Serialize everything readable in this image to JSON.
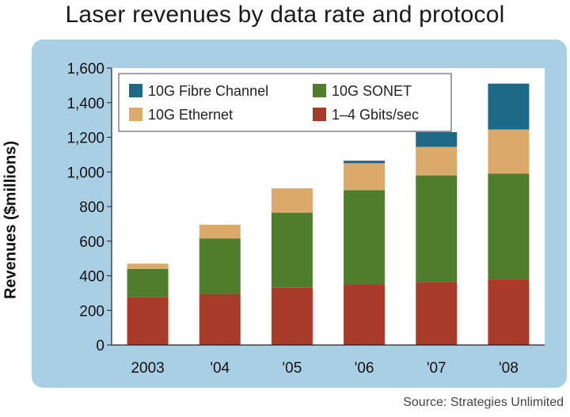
{
  "title": "Laser revenues by data rate and protocol",
  "source": "Source: Strategies Unlimited",
  "colors": {
    "panel_background": "#a9cfe4",
    "plot_background": "#ffffff"
  },
  "chart_data": {
    "type": "bar",
    "stacked": true,
    "title": "Laser revenues by data rate and protocol",
    "xlabel": "",
    "ylabel": "Revenues ($millions)",
    "ylim": [
      0,
      1600
    ],
    "yticks": [
      "0",
      "200",
      "400",
      "600",
      "800",
      "1,000",
      "1,200",
      "1,400",
      "1,600"
    ],
    "ytick_values": [
      0,
      200,
      400,
      600,
      800,
      1000,
      1200,
      1400,
      1600
    ],
    "categories": [
      "2003",
      "'04",
      "'05",
      "'06",
      "'07",
      "'08"
    ],
    "legend_position": "top-left",
    "series": [
      {
        "name": "1–4 Gbits/sec",
        "color": "#a83a28",
        "values": [
          275,
          295,
          330,
          350,
          365,
          375
        ]
      },
      {
        "name": "10G SONET",
        "color": "#4f7d2b",
        "values": [
          165,
          320,
          435,
          545,
          615,
          615
        ]
      },
      {
        "name": "10G Ethernet",
        "color": "#dba96a",
        "values": [
          30,
          80,
          140,
          155,
          165,
          255
        ]
      },
      {
        "name": "10G Fibre Channel",
        "color": "#1e6a86",
        "values": [
          0,
          0,
          0,
          15,
          85,
          265
        ]
      }
    ],
    "legend_order": [
      "10G Fibre Channel",
      "10G SONET",
      "10G Ethernet",
      "1–4 Gbits/sec"
    ]
  }
}
